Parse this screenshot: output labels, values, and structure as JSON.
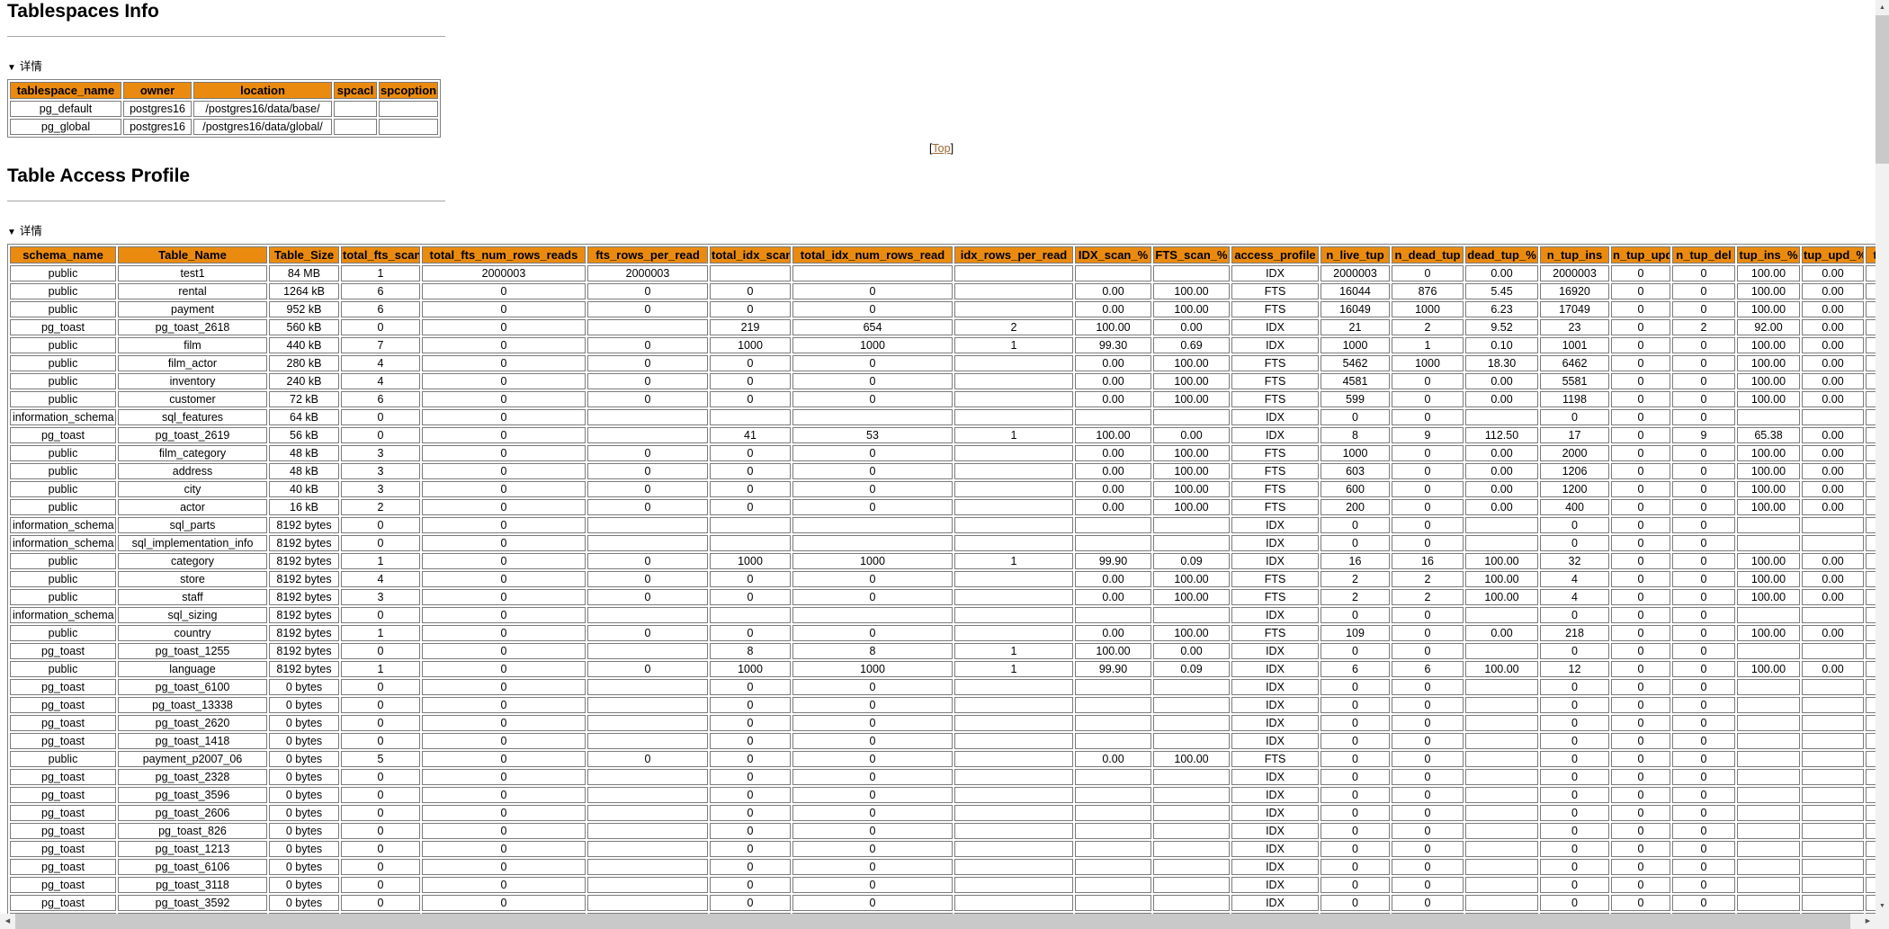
{
  "ui": {
    "details_marker": "▼",
    "details_label": "详情",
    "top_link_prefix": "[",
    "top_link_label": "Top",
    "top_link_suffix": "]",
    "icons": {
      "scroll_left": "◀",
      "scroll_right": "▶",
      "scroll_up": "▲",
      "scroll_down": "▼"
    }
  },
  "colors": {
    "table_header_bg": "#EA8B0F",
    "link": "#996633"
  },
  "tablespaces_section": {
    "title": "Tablespaces Info",
    "table": {
      "columns": [
        "tablespace_name",
        "owner",
        "location",
        "spcacl",
        "spcoptions"
      ],
      "rows": [
        [
          "pg_default",
          "postgres16",
          "/postgres16/data/base/",
          "",
          ""
        ],
        [
          "pg_global",
          "postgres16",
          "/postgres16/data/global/",
          "",
          ""
        ]
      ]
    }
  },
  "table_access_section": {
    "title": "Table Access Profile",
    "table": {
      "columns": [
        "schema_name",
        "Table_Name",
        "Table_Size",
        "total_fts_scan",
        "total_fts_num_rows_reads",
        "fts_rows_per_read",
        "total_idx_scan",
        "total_idx_num_rows_read",
        "idx_rows_per_read",
        "IDX_scan_%",
        "FTS_scan_%",
        "access_profile",
        "n_live_tup",
        "n_dead_tup",
        "dead_tup_%",
        "n_tup_ins",
        "n_tup_upd",
        "n_tup_del",
        "tup_ins_%",
        "tup_upd_%",
        "tup_del_%"
      ],
      "rows": [
        [
          "public",
          "test1",
          "84 MB",
          "1",
          "2000003",
          "2000003",
          "",
          "",
          "",
          "",
          "",
          "IDX",
          "2000003",
          "0",
          "0.00",
          "2000003",
          "0",
          "0",
          "100.00",
          "0.00",
          ""
        ],
        [
          "public",
          "rental",
          "1264 kB",
          "6",
          "0",
          "0",
          "0",
          "0",
          "",
          "0.00",
          "100.00",
          "FTS",
          "16044",
          "876",
          "5.45",
          "16920",
          "0",
          "0",
          "100.00",
          "0.00",
          ""
        ],
        [
          "public",
          "payment",
          "952 kB",
          "6",
          "0",
          "0",
          "0",
          "0",
          "",
          "0.00",
          "100.00",
          "FTS",
          "16049",
          "1000",
          "6.23",
          "17049",
          "0",
          "0",
          "100.00",
          "0.00",
          ""
        ],
        [
          "pg_toast",
          "pg_toast_2618",
          "560 kB",
          "0",
          "0",
          "",
          "219",
          "654",
          "2",
          "100.00",
          "0.00",
          "IDX",
          "21",
          "2",
          "9.52",
          "23",
          "0",
          "2",
          "92.00",
          "0.00",
          ""
        ],
        [
          "public",
          "film",
          "440 kB",
          "7",
          "0",
          "0",
          "1000",
          "1000",
          "1",
          "99.30",
          "0.69",
          "IDX",
          "1000",
          "1",
          "0.10",
          "1001",
          "0",
          "0",
          "100.00",
          "0.00",
          ""
        ],
        [
          "public",
          "film_actor",
          "280 kB",
          "4",
          "0",
          "0",
          "0",
          "0",
          "",
          "0.00",
          "100.00",
          "FTS",
          "5462",
          "1000",
          "18.30",
          "6462",
          "0",
          "0",
          "100.00",
          "0.00",
          ""
        ],
        [
          "public",
          "inventory",
          "240 kB",
          "4",
          "0",
          "0",
          "0",
          "0",
          "",
          "0.00",
          "100.00",
          "FTS",
          "4581",
          "0",
          "0.00",
          "5581",
          "0",
          "0",
          "100.00",
          "0.00",
          ""
        ],
        [
          "public",
          "customer",
          "72 kB",
          "6",
          "0",
          "0",
          "0",
          "0",
          "",
          "0.00",
          "100.00",
          "FTS",
          "599",
          "0",
          "0.00",
          "1198",
          "0",
          "0",
          "100.00",
          "0.00",
          ""
        ],
        [
          "information_schema",
          "sql_features",
          "64 kB",
          "0",
          "0",
          "",
          "",
          "",
          "",
          "",
          "",
          "IDX",
          "0",
          "0",
          "",
          "0",
          "0",
          "0",
          "",
          "",
          ""
        ],
        [
          "pg_toast",
          "pg_toast_2619",
          "56 kB",
          "0",
          "0",
          "",
          "41",
          "53",
          "1",
          "100.00",
          "0.00",
          "IDX",
          "8",
          "9",
          "112.50",
          "17",
          "0",
          "9",
          "65.38",
          "0.00",
          ""
        ],
        [
          "public",
          "film_category",
          "48 kB",
          "3",
          "0",
          "0",
          "0",
          "0",
          "",
          "0.00",
          "100.00",
          "FTS",
          "1000",
          "0",
          "0.00",
          "2000",
          "0",
          "0",
          "100.00",
          "0.00",
          ""
        ],
        [
          "public",
          "address",
          "48 kB",
          "3",
          "0",
          "0",
          "0",
          "0",
          "",
          "0.00",
          "100.00",
          "FTS",
          "603",
          "0",
          "0.00",
          "1206",
          "0",
          "0",
          "100.00",
          "0.00",
          ""
        ],
        [
          "public",
          "city",
          "40 kB",
          "3",
          "0",
          "0",
          "0",
          "0",
          "",
          "0.00",
          "100.00",
          "FTS",
          "600",
          "0",
          "0.00",
          "1200",
          "0",
          "0",
          "100.00",
          "0.00",
          ""
        ],
        [
          "public",
          "actor",
          "16 kB",
          "2",
          "0",
          "0",
          "0",
          "0",
          "",
          "0.00",
          "100.00",
          "FTS",
          "200",
          "0",
          "0.00",
          "400",
          "0",
          "0",
          "100.00",
          "0.00",
          ""
        ],
        [
          "information_schema",
          "sql_parts",
          "8192 bytes",
          "0",
          "0",
          "",
          "",
          "",
          "",
          "",
          "",
          "IDX",
          "0",
          "0",
          "",
          "0",
          "0",
          "0",
          "",
          "",
          ""
        ],
        [
          "information_schema",
          "sql_implementation_info",
          "8192 bytes",
          "0",
          "0",
          "",
          "",
          "",
          "",
          "",
          "",
          "IDX",
          "0",
          "0",
          "",
          "0",
          "0",
          "0",
          "",
          "",
          ""
        ],
        [
          "public",
          "category",
          "8192 bytes",
          "1",
          "0",
          "0",
          "1000",
          "1000",
          "1",
          "99.90",
          "0.09",
          "IDX",
          "16",
          "16",
          "100.00",
          "32",
          "0",
          "0",
          "100.00",
          "0.00",
          ""
        ],
        [
          "public",
          "store",
          "8192 bytes",
          "4",
          "0",
          "0",
          "0",
          "0",
          "",
          "0.00",
          "100.00",
          "FTS",
          "2",
          "2",
          "100.00",
          "4",
          "0",
          "0",
          "100.00",
          "0.00",
          ""
        ],
        [
          "public",
          "staff",
          "8192 bytes",
          "3",
          "0",
          "0",
          "0",
          "0",
          "",
          "0.00",
          "100.00",
          "FTS",
          "2",
          "2",
          "100.00",
          "4",
          "0",
          "0",
          "100.00",
          "0.00",
          ""
        ],
        [
          "information_schema",
          "sql_sizing",
          "8192 bytes",
          "0",
          "0",
          "",
          "",
          "",
          "",
          "",
          "",
          "IDX",
          "0",
          "0",
          "",
          "0",
          "0",
          "0",
          "",
          "",
          ""
        ],
        [
          "public",
          "country",
          "8192 bytes",
          "1",
          "0",
          "0",
          "0",
          "0",
          "",
          "0.00",
          "100.00",
          "FTS",
          "109",
          "0",
          "0.00",
          "218",
          "0",
          "0",
          "100.00",
          "0.00",
          ""
        ],
        [
          "pg_toast",
          "pg_toast_1255",
          "8192 bytes",
          "0",
          "0",
          "",
          "8",
          "8",
          "1",
          "100.00",
          "0.00",
          "IDX",
          "0",
          "0",
          "",
          "0",
          "0",
          "0",
          "",
          "",
          ""
        ],
        [
          "public",
          "language",
          "8192 bytes",
          "1",
          "0",
          "0",
          "1000",
          "1000",
          "1",
          "99.90",
          "0.09",
          "IDX",
          "6",
          "6",
          "100.00",
          "12",
          "0",
          "0",
          "100.00",
          "0.00",
          ""
        ],
        [
          "pg_toast",
          "pg_toast_6100",
          "0 bytes",
          "0",
          "0",
          "",
          "0",
          "0",
          "",
          "",
          "",
          "IDX",
          "0",
          "0",
          "",
          "0",
          "0",
          "0",
          "",
          "",
          ""
        ],
        [
          "pg_toast",
          "pg_toast_13338",
          "0 bytes",
          "0",
          "0",
          "",
          "0",
          "0",
          "",
          "",
          "",
          "IDX",
          "0",
          "0",
          "",
          "0",
          "0",
          "0",
          "",
          "",
          ""
        ],
        [
          "pg_toast",
          "pg_toast_2620",
          "0 bytes",
          "0",
          "0",
          "",
          "0",
          "0",
          "",
          "",
          "",
          "IDX",
          "0",
          "0",
          "",
          "0",
          "0",
          "0",
          "",
          "",
          ""
        ],
        [
          "pg_toast",
          "pg_toast_1418",
          "0 bytes",
          "0",
          "0",
          "",
          "0",
          "0",
          "",
          "",
          "",
          "IDX",
          "0",
          "0",
          "",
          "0",
          "0",
          "0",
          "",
          "",
          ""
        ],
        [
          "public",
          "payment_p2007_06",
          "0 bytes",
          "5",
          "0",
          "0",
          "0",
          "0",
          "",
          "0.00",
          "100.00",
          "FTS",
          "0",
          "0",
          "",
          "0",
          "0",
          "0",
          "",
          "",
          ""
        ],
        [
          "pg_toast",
          "pg_toast_2328",
          "0 bytes",
          "0",
          "0",
          "",
          "0",
          "0",
          "",
          "",
          "",
          "IDX",
          "0",
          "0",
          "",
          "0",
          "0",
          "0",
          "",
          "",
          ""
        ],
        [
          "pg_toast",
          "pg_toast_3596",
          "0 bytes",
          "0",
          "0",
          "",
          "0",
          "0",
          "",
          "",
          "",
          "IDX",
          "0",
          "0",
          "",
          "0",
          "0",
          "0",
          "",
          "",
          ""
        ],
        [
          "pg_toast",
          "pg_toast_2606",
          "0 bytes",
          "0",
          "0",
          "",
          "0",
          "0",
          "",
          "",
          "",
          "IDX",
          "0",
          "0",
          "",
          "0",
          "0",
          "0",
          "",
          "",
          ""
        ],
        [
          "pg_toast",
          "pg_toast_826",
          "0 bytes",
          "0",
          "0",
          "",
          "0",
          "0",
          "",
          "",
          "",
          "IDX",
          "0",
          "0",
          "",
          "0",
          "0",
          "0",
          "",
          "",
          ""
        ],
        [
          "pg_toast",
          "pg_toast_1213",
          "0 bytes",
          "0",
          "0",
          "",
          "0",
          "0",
          "",
          "",
          "",
          "IDX",
          "0",
          "0",
          "",
          "0",
          "0",
          "0",
          "",
          "",
          ""
        ],
        [
          "pg_toast",
          "pg_toast_6106",
          "0 bytes",
          "0",
          "0",
          "",
          "0",
          "0",
          "",
          "",
          "",
          "IDX",
          "0",
          "0",
          "",
          "0",
          "0",
          "0",
          "",
          "",
          ""
        ],
        [
          "pg_toast",
          "pg_toast_3118",
          "0 bytes",
          "0",
          "0",
          "",
          "0",
          "0",
          "",
          "",
          "",
          "IDX",
          "0",
          "0",
          "",
          "0",
          "0",
          "0",
          "",
          "",
          ""
        ],
        [
          "pg_toast",
          "pg_toast_3592",
          "0 bytes",
          "0",
          "0",
          "",
          "0",
          "0",
          "",
          "",
          "",
          "IDX",
          "0",
          "0",
          "",
          "0",
          "0",
          "0",
          "",
          "",
          ""
        ],
        [
          "",
          "",
          "",
          "",
          "",
          "",
          "",
          "",
          "",
          "",
          "",
          "",
          "",
          "",
          "",
          "",
          "",
          "",
          "",
          "",
          ""
        ]
      ]
    }
  }
}
